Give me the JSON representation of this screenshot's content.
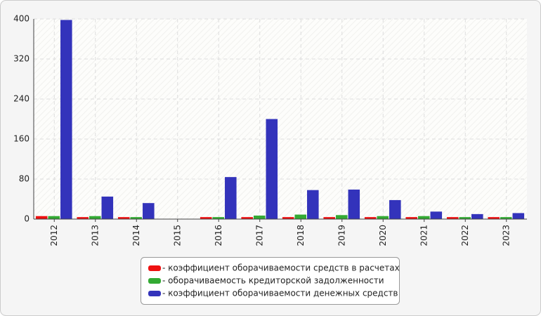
{
  "chart_data": {
    "type": "bar",
    "categories": [
      "2012",
      "2013",
      "2014",
      "2015",
      "2016",
      "2017",
      "2018",
      "2019",
      "2020",
      "2021",
      "2022",
      "2023"
    ],
    "series": [
      {
        "name": "- коэффициент оборачиваемости средств в расчетах",
        "color": "#ee1111",
        "values": [
          6,
          4,
          4,
          null,
          4,
          4,
          4,
          4,
          4,
          4,
          4,
          4
        ]
      },
      {
        "name": "- оборачиваемость кредиторской задолженности",
        "color": "#33aa33",
        "values": [
          6,
          6,
          4,
          null,
          4,
          7,
          9,
          8,
          6,
          6,
          4,
          4
        ]
      },
      {
        "name": "- коэффициент оборачиваемости денежных средств",
        "color": "#3333bb",
        "values": [
          398,
          45,
          32,
          null,
          84,
          200,
          58,
          59,
          38,
          15,
          10,
          12
        ]
      }
    ],
    "ylim": [
      0,
      400
    ],
    "yticks": [
      0,
      80,
      160,
      240,
      320,
      400
    ],
    "grid": true,
    "legend": "bottom"
  }
}
